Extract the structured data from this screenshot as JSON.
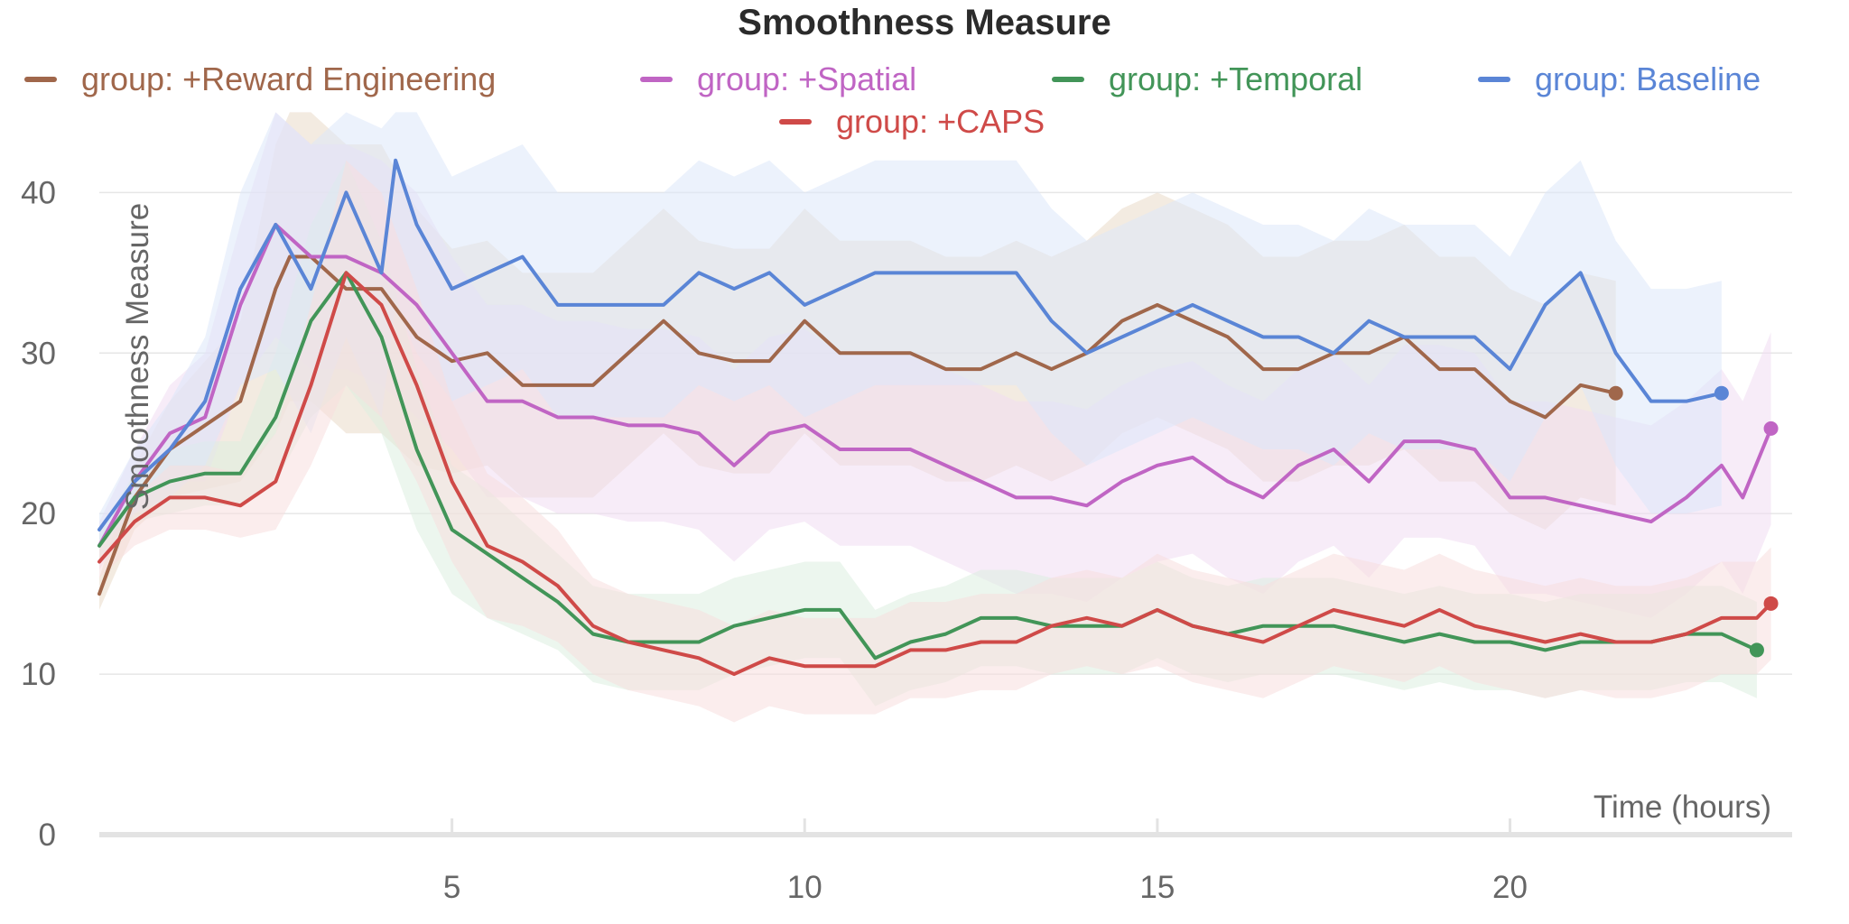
{
  "chart_data": {
    "type": "line",
    "title": "Smoothness Measure",
    "xlabel": "Time (hours)",
    "ylabel": "Smoothness Measure",
    "xlim": [
      0,
      24
    ],
    "ylim": [
      0,
      43
    ],
    "x_ticks": [
      5,
      10,
      15,
      20
    ],
    "y_ticks": [
      0,
      10,
      20,
      30,
      40
    ],
    "grid": true,
    "legend_position": "top",
    "series": [
      {
        "name": "group: +Reward Engineering",
        "color": "#a0674b",
        "band_color": "#eadbc8",
        "x": [
          0,
          0.5,
          1,
          1.5,
          2,
          2.5,
          2.7,
          3,
          3.5,
          4,
          4.5,
          5,
          5.5,
          6,
          6.5,
          7,
          7.5,
          8,
          8.5,
          9,
          9.5,
          10,
          10.5,
          11,
          11.5,
          12,
          12.5,
          13,
          13.5,
          14,
          14.5,
          15,
          15.5,
          16,
          16.5,
          17,
          17.5,
          18,
          18.5,
          19,
          19.5,
          20,
          20.5,
          21,
          21.5
        ],
        "y": [
          15,
          21,
          24,
          25.5,
          27,
          34,
          36,
          36,
          34,
          34,
          31,
          29.5,
          30,
          28,
          28,
          28,
          30,
          32,
          30,
          29.5,
          29.5,
          32,
          30,
          30,
          30,
          29,
          29,
          30,
          29,
          30,
          32,
          33,
          32,
          31,
          29,
          29,
          30,
          30,
          31,
          29,
          29,
          27,
          26,
          28,
          27.5
        ],
        "band": [
          1,
          2,
          3,
          4,
          5,
          9,
          9,
          9,
          9,
          9,
          8,
          7,
          7,
          7,
          7,
          7,
          7,
          7,
          7,
          7,
          7,
          7,
          7,
          7,
          7,
          7,
          7,
          7,
          7,
          7,
          7,
          7,
          7,
          7,
          7,
          7,
          7,
          7,
          7,
          7,
          7,
          7,
          7,
          7,
          7
        ]
      },
      {
        "name": "group: +Spatial",
        "color": "#c065c4",
        "band_color": "#f1dcf2",
        "x": [
          0,
          0.5,
          1,
          1.5,
          2,
          2.5,
          3,
          3.5,
          4,
          4.5,
          5,
          5.5,
          6,
          6.5,
          7,
          7.5,
          8,
          8.5,
          9,
          9.5,
          10,
          10.5,
          11,
          11.5,
          12,
          12.5,
          13,
          13.5,
          14,
          14.5,
          15,
          15.5,
          16,
          16.5,
          17,
          17.5,
          18,
          18.5,
          19,
          19.5,
          20,
          20.5,
          21,
          21.5,
          22,
          22.5,
          23,
          23.3,
          23.7
        ],
        "y": [
          18,
          22,
          25,
          26,
          33,
          38,
          36,
          36,
          35,
          33,
          30,
          27,
          27,
          26,
          26,
          25.5,
          25.5,
          25,
          23,
          25,
          25.5,
          24,
          24,
          24,
          23,
          22,
          21,
          21,
          20.5,
          22,
          23,
          23.5,
          22,
          21,
          23,
          24,
          22,
          24.5,
          24.5,
          24,
          21,
          21,
          20.5,
          20,
          19.5,
          21,
          23,
          21,
          25.3
        ],
        "band": [
          1.5,
          2,
          3,
          4,
          5,
          7,
          7,
          7,
          7,
          7,
          6,
          6,
          6,
          6,
          6,
          6,
          6,
          6,
          6,
          6,
          6,
          6,
          6,
          6,
          6,
          6,
          6,
          6,
          6,
          6,
          6,
          6,
          6,
          6,
          6,
          6,
          6,
          6,
          6,
          6,
          6,
          6,
          6,
          6,
          6,
          6,
          6,
          6,
          6
        ]
      },
      {
        "name": "group: +Temporal",
        "color": "#429558",
        "band_color": "#dcefe0",
        "x": [
          0,
          0.5,
          1,
          1.5,
          2,
          2.5,
          3,
          3.5,
          4,
          4.5,
          5,
          5.5,
          6,
          6.5,
          7,
          7.5,
          8,
          8.5,
          9,
          9.5,
          10,
          10.5,
          11,
          11.5,
          12,
          12.5,
          13,
          13.5,
          14,
          14.5,
          15,
          15.5,
          16,
          16.5,
          17,
          17.5,
          18,
          18.5,
          19,
          19.5,
          20,
          20.5,
          21,
          21.5,
          22,
          22.5,
          23,
          23.5
        ],
        "y": [
          18,
          21,
          22,
          22.5,
          22.5,
          26,
          32,
          35,
          31,
          24,
          19,
          17.5,
          16,
          14.5,
          12.5,
          12,
          12,
          12,
          13,
          13.5,
          14,
          14,
          11,
          12,
          12.5,
          13.5,
          13.5,
          13,
          13,
          13,
          14,
          13,
          12.5,
          13,
          13,
          13,
          12.5,
          12,
          12.5,
          12,
          12,
          11.5,
          12,
          12,
          12,
          12.5,
          12.5,
          11.5
        ],
        "band": [
          1,
          1.5,
          2,
          2,
          2,
          4,
          6,
          7,
          6,
          5,
          4,
          4,
          3.5,
          3,
          3,
          3,
          3,
          3,
          3,
          3,
          3,
          3,
          3,
          3,
          3,
          3,
          3,
          3,
          3,
          3,
          3,
          3,
          3,
          3,
          3,
          3,
          3,
          3,
          3,
          3,
          3,
          3,
          3,
          3,
          3,
          3,
          3,
          3
        ]
      },
      {
        "name": "group: Baseline",
        "color": "#5a85d6",
        "band_color": "#dde7fa",
        "x": [
          0,
          0.5,
          1,
          1.5,
          2,
          2.5,
          3,
          3.5,
          4,
          4.2,
          4.5,
          5,
          5.5,
          6,
          6.5,
          7,
          7.5,
          8,
          8.5,
          9,
          9.5,
          10,
          10.5,
          11,
          11.5,
          12,
          12.5,
          13,
          13.5,
          14,
          14.5,
          15,
          15.5,
          16,
          16.5,
          17,
          17.5,
          18,
          18.5,
          19,
          19.5,
          20,
          20.5,
          21,
          21.5,
          22,
          22.5,
          23
        ],
        "y": [
          19,
          22,
          24,
          27,
          34,
          38,
          34,
          40,
          35,
          42,
          38,
          34,
          35,
          36,
          33,
          33,
          33,
          33,
          35,
          34,
          35,
          33,
          34,
          35,
          35,
          35,
          35,
          35,
          32,
          30,
          31,
          32,
          33,
          32,
          31,
          31,
          30,
          32,
          31,
          31,
          31,
          29,
          33,
          35,
          30,
          27,
          27,
          27.5
        ],
        "band": [
          1,
          2,
          3,
          4,
          6,
          9,
          9,
          9,
          9,
          9,
          8,
          7,
          7,
          7,
          7,
          7,
          7,
          7,
          7,
          7,
          7,
          7,
          7,
          7,
          7,
          7,
          7,
          7,
          7,
          7,
          7,
          7,
          7,
          7,
          7,
          7,
          7,
          7,
          7,
          7,
          7,
          7,
          7,
          7,
          7,
          7,
          7,
          7
        ]
      },
      {
        "name": "group: +CAPS",
        "color": "#cf4a48",
        "band_color": "#f8dede",
        "x": [
          0,
          0.5,
          1,
          1.5,
          2,
          2.5,
          3,
          3.5,
          4,
          4.5,
          5,
          5.5,
          6,
          6.5,
          7,
          7.5,
          8,
          8.5,
          9,
          9.5,
          10,
          10.5,
          11,
          11.5,
          12,
          12.5,
          13,
          13.5,
          14,
          14.5,
          15,
          15.5,
          16,
          16.5,
          17,
          17.5,
          18,
          18.5,
          19,
          19.5,
          20,
          20.5,
          21,
          21.5,
          22,
          22.5,
          23,
          23.5,
          23.7
        ],
        "y": [
          17,
          19.5,
          21,
          21,
          20.5,
          22,
          28,
          35,
          33,
          28,
          22,
          18,
          17,
          15.5,
          13,
          12,
          11.5,
          11,
          10,
          11,
          10.5,
          10.5,
          10.5,
          11.5,
          11.5,
          12,
          12,
          13,
          13.5,
          13,
          14,
          13,
          12.5,
          12,
          13,
          14,
          13.5,
          13,
          14,
          13,
          12.5,
          12,
          12.5,
          12,
          12,
          12.5,
          13.5,
          13.5,
          14.4
        ],
        "band": [
          1,
          1.5,
          2,
          2,
          2,
          3,
          5,
          7,
          7,
          6,
          5,
          4.5,
          4,
          3.5,
          3,
          3,
          3,
          3,
          3,
          3,
          3,
          3,
          3,
          3,
          3,
          3,
          3,
          3,
          3,
          3,
          3.5,
          3.5,
          3.5,
          3.5,
          3.5,
          3.5,
          3.5,
          3.5,
          3.5,
          3.5,
          3.5,
          3.5,
          3.5,
          3.5,
          3.5,
          3.5,
          3.5,
          3.5,
          3.5
        ]
      }
    ]
  }
}
